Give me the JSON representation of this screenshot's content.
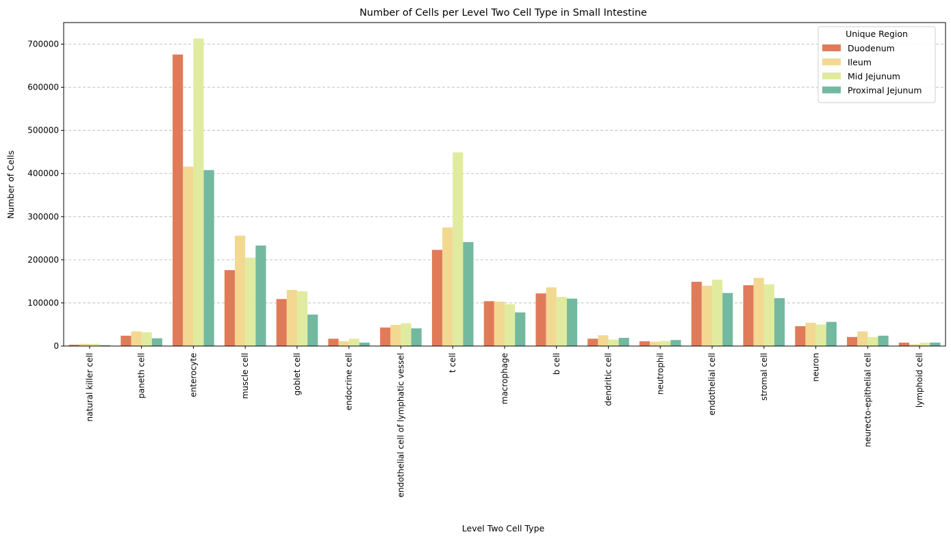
{
  "chart_data": {
    "type": "bar",
    "title": "Number of Cells per Level Two Cell Type in Small Intestine",
    "xlabel": "Level Two Cell Type",
    "ylabel": "Number of Cells",
    "ylim": [
      0,
      750000
    ],
    "yticks": [
      0,
      100000,
      200000,
      300000,
      400000,
      500000,
      600000,
      700000
    ],
    "grid": "y-dashed",
    "legend": {
      "title": "Unique Region",
      "placement": "top-right"
    },
    "categories": [
      "natural killer cell",
      "paneth cell",
      "enterocyte",
      "muscle cell",
      "goblet cell",
      "endocrine cell",
      "endothelial cell of lymphatic vessel",
      "t cell",
      "macrophage",
      "b cell",
      "dendritic cell",
      "neutrophil",
      "endothelial cell",
      "stromal cell",
      "neuron",
      "neurecto-epithelial cell",
      "lymphoid cell"
    ],
    "series": [
      {
        "name": "Duodenum",
        "color": "#e07b5a",
        "values": [
          3000,
          24000,
          676000,
          176000,
          109000,
          17000,
          43000,
          223000,
          104000,
          122000,
          17000,
          11000,
          149000,
          141000,
          46000,
          21000,
          8000
        ]
      },
      {
        "name": "Ileum",
        "color": "#f2d891",
        "values": [
          5000,
          34000,
          416000,
          256000,
          130000,
          11000,
          49000,
          275000,
          103000,
          136000,
          25000,
          10000,
          140000,
          158000,
          54000,
          34000,
          4000
        ]
      },
      {
        "name": "Mid Jejunum",
        "color": "#e0eb9f",
        "values": [
          5000,
          32000,
          713000,
          205000,
          127000,
          17000,
          53000,
          449000,
          97000,
          114000,
          15000,
          12000,
          154000,
          143000,
          50000,
          21000,
          8000
        ]
      },
      {
        "name": "Proximal Jejunum",
        "color": "#72b9a0",
        "values": [
          2000,
          18000,
          408000,
          233000,
          73000,
          8000,
          41000,
          241000,
          78000,
          110000,
          19000,
          14000,
          123000,
          111000,
          56000,
          24000,
          8000
        ]
      }
    ]
  }
}
